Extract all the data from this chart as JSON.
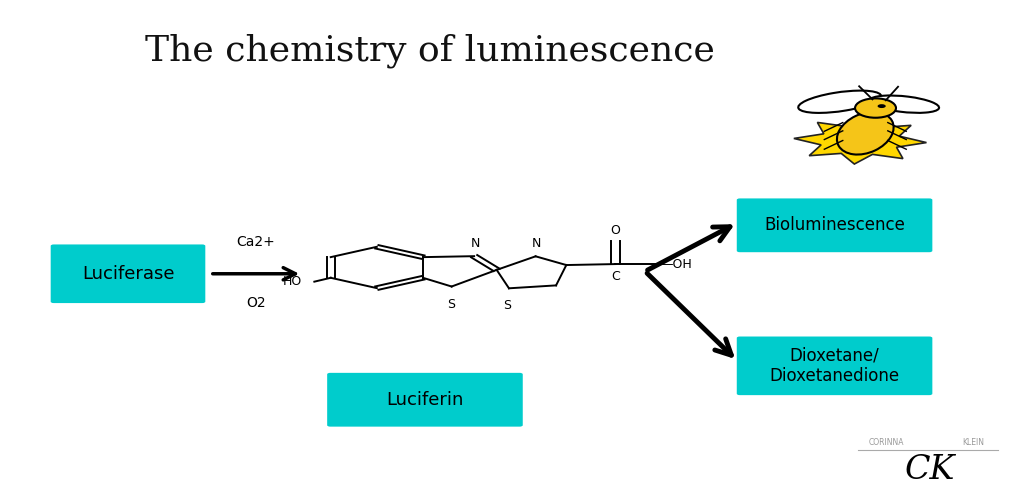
{
  "title": "The chemistry of luminescence",
  "title_fontsize": 26,
  "title_font": "serif",
  "bg_color": "#ffffff",
  "cyan_color": "#00CCCC",
  "box_labels": {
    "luciferase": "Luciferase",
    "luciferin": "Luciferin",
    "bioluminescence": "Bioluminescence",
    "dioxetane": "Dioxetane/\nDioxetanedione"
  },
  "arrow_ca2_label": "Ca2+",
  "arrow_o2_label": "O2",
  "watermark_text1": "CORINNA",
  "watermark_text2": "KLEIN"
}
